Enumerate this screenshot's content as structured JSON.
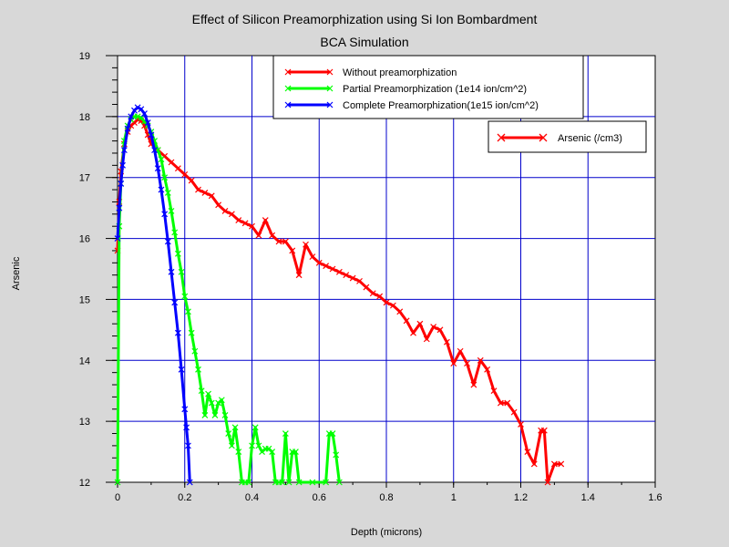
{
  "chart_data": {
    "type": "line",
    "title": "Effect of Silicon Preamorphization using Si Ion Bombardment",
    "subtitle": "BCA Simulation",
    "xlabel": "Depth (microns)",
    "ylabel": "Arsenic",
    "xlim": [
      0,
      1.6
    ],
    "ylim": [
      12,
      19
    ],
    "x_ticks": [
      "0",
      "0.2",
      "0.4",
      "0.6",
      "0.8",
      "1",
      "1.2",
      "1.4",
      "1.6"
    ],
    "y_ticks": [
      "12",
      "13",
      "14",
      "15",
      "16",
      "17",
      "18",
      "19"
    ],
    "grid": true,
    "legend_main": "top-center",
    "legend_secondary": "top-right",
    "secondary_legend_label": "Arsenic (/cm3)",
    "series": [
      {
        "name": "Without preamorphization",
        "color": "#ff0000",
        "x": [
          0.0,
          0.005,
          0.01,
          0.02,
          0.03,
          0.04,
          0.05,
          0.06,
          0.07,
          0.08,
          0.09,
          0.1,
          0.12,
          0.14,
          0.16,
          0.18,
          0.2,
          0.22,
          0.24,
          0.26,
          0.28,
          0.3,
          0.32,
          0.34,
          0.36,
          0.38,
          0.4,
          0.42,
          0.44,
          0.46,
          0.48,
          0.5,
          0.52,
          0.54,
          0.56,
          0.58,
          0.6,
          0.62,
          0.64,
          0.66,
          0.68,
          0.7,
          0.72,
          0.74,
          0.76,
          0.78,
          0.8,
          0.82,
          0.84,
          0.86,
          0.88,
          0.9,
          0.92,
          0.94,
          0.96,
          0.98,
          1.0,
          1.02,
          1.04,
          1.06,
          1.08,
          1.1,
          1.12,
          1.14,
          1.16,
          1.18,
          1.2,
          1.22,
          1.24,
          1.26,
          1.27,
          1.28,
          1.3,
          1.32
        ],
        "y": [
          15.8,
          16.6,
          17.1,
          17.55,
          17.75,
          17.85,
          17.9,
          17.95,
          17.93,
          17.85,
          17.7,
          17.55,
          17.45,
          17.35,
          17.25,
          17.15,
          17.05,
          16.95,
          16.8,
          16.75,
          16.7,
          16.55,
          16.45,
          16.4,
          16.3,
          16.25,
          16.2,
          16.05,
          16.3,
          16.05,
          15.95,
          15.95,
          15.8,
          15.4,
          15.9,
          15.7,
          15.6,
          15.55,
          15.5,
          15.45,
          15.4,
          15.35,
          15.3,
          15.2,
          15.1,
          15.05,
          14.95,
          14.9,
          14.8,
          14.65,
          14.45,
          14.6,
          14.35,
          14.55,
          14.5,
          14.3,
          13.95,
          14.15,
          13.95,
          13.6,
          14.0,
          13.85,
          13.5,
          13.3,
          13.3,
          13.15,
          12.95,
          12.5,
          12.3,
          12.85,
          12.85,
          12.0,
          12.3,
          12.3
        ]
      },
      {
        "name": "Partial Preamorphization (1e14 ion/cm^2)",
        "color": "#00ff00",
        "x": [
          0.0,
          0.005,
          0.01,
          0.02,
          0.03,
          0.04,
          0.05,
          0.06,
          0.07,
          0.08,
          0.09,
          0.1,
          0.11,
          0.12,
          0.13,
          0.14,
          0.15,
          0.16,
          0.17,
          0.18,
          0.19,
          0.2,
          0.21,
          0.22,
          0.23,
          0.24,
          0.25,
          0.26,
          0.27,
          0.28,
          0.29,
          0.3,
          0.31,
          0.32,
          0.33,
          0.34,
          0.35,
          0.36,
          0.37,
          0.38,
          0.39,
          0.4,
          0.41,
          0.42,
          0.43,
          0.44,
          0.45,
          0.46,
          0.47,
          0.48,
          0.49,
          0.5,
          0.51,
          0.52,
          0.53,
          0.54,
          0.58,
          0.62,
          0.63,
          0.64,
          0.65,
          0.66
        ],
        "y": [
          12.0,
          16.2,
          16.9,
          17.6,
          17.85,
          17.95,
          18.0,
          18.0,
          17.98,
          17.92,
          17.85,
          17.75,
          17.6,
          17.45,
          17.3,
          17.0,
          16.75,
          16.45,
          16.1,
          15.75,
          15.45,
          15.05,
          14.8,
          14.45,
          14.15,
          13.85,
          13.5,
          13.1,
          13.45,
          13.3,
          13.1,
          13.3,
          13.35,
          13.1,
          12.8,
          12.6,
          12.9,
          12.5,
          12.0,
          12.0,
          12.0,
          12.6,
          12.9,
          12.6,
          12.5,
          12.55,
          12.55,
          12.5,
          12.0,
          12.0,
          12.0,
          12.8,
          12.0,
          12.5,
          12.5,
          12.0,
          12.0,
          12.0,
          12.8,
          12.8,
          12.45,
          12.0
        ]
      },
      {
        "name": "Complete Preamorphization(1e15 ion/cm^2)",
        "color": "#0000ff",
        "x": [
          0.0,
          0.005,
          0.01,
          0.015,
          0.02,
          0.03,
          0.04,
          0.05,
          0.06,
          0.07,
          0.08,
          0.09,
          0.1,
          0.11,
          0.12,
          0.13,
          0.14,
          0.15,
          0.16,
          0.17,
          0.18,
          0.19,
          0.2,
          0.205,
          0.21,
          0.215
        ],
        "y": [
          16.0,
          16.5,
          16.9,
          17.2,
          17.45,
          17.8,
          18.0,
          18.1,
          18.15,
          18.12,
          18.05,
          17.9,
          17.7,
          17.45,
          17.15,
          16.8,
          16.4,
          15.95,
          15.45,
          14.95,
          14.45,
          13.85,
          13.2,
          12.9,
          12.6,
          12.0
        ]
      }
    ]
  }
}
